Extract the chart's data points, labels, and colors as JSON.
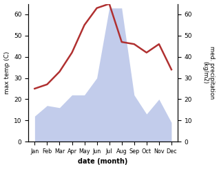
{
  "months": [
    "Jan",
    "Feb",
    "Mar",
    "Apr",
    "May",
    "Jun",
    "Jul",
    "Aug",
    "Sep",
    "Oct",
    "Nov",
    "Dec"
  ],
  "temperature": [
    25,
    27,
    33,
    42,
    55,
    63,
    65,
    47,
    46,
    42,
    46,
    34
  ],
  "precipitation": [
    12,
    17,
    16,
    22,
    22,
    30,
    63,
    63,
    22,
    13,
    20,
    9
  ],
  "temp_color": "#b03030",
  "precip_color": "#b8c4e8",
  "xlabel": "date (month)",
  "ylabel_left": "max temp (C)",
  "ylabel_right": "med. precipitation\n(kg/m2)",
  "ylim": [
    0,
    65
  ],
  "yticks": [
    0,
    10,
    20,
    30,
    40,
    50,
    60
  ],
  "background_color": "#ffffff"
}
